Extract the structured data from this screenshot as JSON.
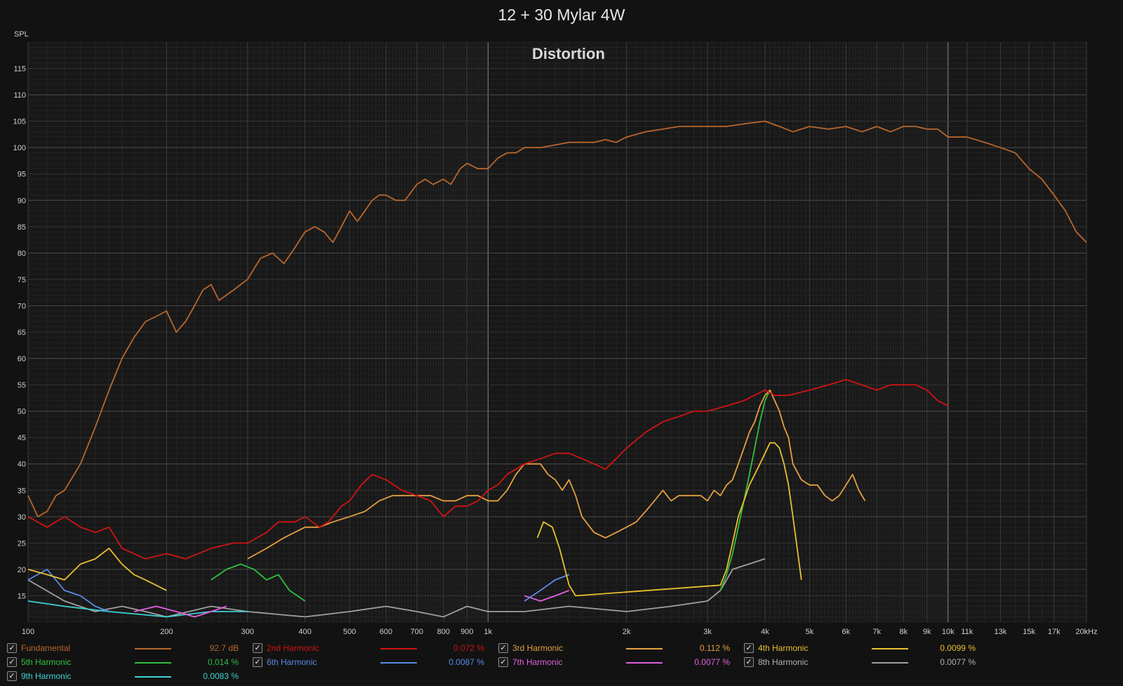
{
  "title": "12 + 30 Mylar 4W",
  "chart_data": {
    "type": "line",
    "title": "12 + 30 Mylar 4W",
    "subtitle": "Distortion",
    "ylabel": "SPL",
    "xlabel": "",
    "x_scale": "log",
    "xlim": [
      100,
      20000
    ],
    "ylim": [
      10,
      120
    ],
    "grid": true,
    "y_ticks": [
      15,
      20,
      25,
      30,
      35,
      40,
      45,
      50,
      55,
      60,
      65,
      70,
      75,
      80,
      85,
      90,
      95,
      100,
      105,
      110,
      115
    ],
    "x_ticks": [
      {
        "v": 100,
        "label": "100"
      },
      {
        "v": 200,
        "label": "200"
      },
      {
        "v": 300,
        "label": "300"
      },
      {
        "v": 400,
        "label": "400"
      },
      {
        "v": 500,
        "label": "500"
      },
      {
        "v": 600,
        "label": "600"
      },
      {
        "v": 700,
        "label": "700"
      },
      {
        "v": 800,
        "label": "800"
      },
      {
        "v": 900,
        "label": "900"
      },
      {
        "v": 1000,
        "label": "1k"
      },
      {
        "v": 2000,
        "label": "2k"
      },
      {
        "v": 3000,
        "label": "3k"
      },
      {
        "v": 4000,
        "label": "4k"
      },
      {
        "v": 5000,
        "label": "5k"
      },
      {
        "v": 6000,
        "label": "6k"
      },
      {
        "v": 7000,
        "label": "7k"
      },
      {
        "v": 8000,
        "label": "8k"
      },
      {
        "v": 9000,
        "label": "9k"
      },
      {
        "v": 10000,
        "label": "10k"
      },
      {
        "v": 11000,
        "label": "11k"
      },
      {
        "v": 13000,
        "label": "13k"
      },
      {
        "v": 15000,
        "label": "15k"
      },
      {
        "v": 17000,
        "label": "17k"
      },
      {
        "v": 20000,
        "label": "20kHz"
      }
    ],
    "legend_position": "bottom",
    "series": [
      {
        "name": "Fundamental",
        "color": "#b8662e",
        "value": "92.7 dB",
        "x": [
          100,
          105,
          110,
          115,
          120,
          130,
          140,
          150,
          160,
          170,
          180,
          190,
          200,
          210,
          220,
          230,
          240,
          250,
          260,
          280,
          300,
          320,
          340,
          360,
          380,
          400,
          420,
          440,
          460,
          480,
          500,
          520,
          540,
          560,
          580,
          600,
          630,
          660,
          700,
          730,
          760,
          800,
          830,
          870,
          900,
          950,
          1000,
          1050,
          1100,
          1150,
          1200,
          1300,
          1400,
          1500,
          1600,
          1700,
          1800,
          1900,
          2000,
          2200,
          2400,
          2600,
          2800,
          3000,
          3300,
          3600,
          4000,
          4300,
          4600,
          5000,
          5500,
          6000,
          6500,
          7000,
          7500,
          8000,
          8500,
          9000,
          9500,
          10000,
          10500,
          11000,
          12000,
          13000,
          14000,
          15000,
          16000,
          17000,
          18000,
          19000,
          20000
        ],
        "y": [
          34,
          30,
          31,
          34,
          35,
          40,
          47,
          54,
          60,
          64,
          67,
          68,
          69,
          65,
          67,
          70,
          73,
          74,
          71,
          73,
          75,
          79,
          80,
          78,
          81,
          84,
          85,
          84,
          82,
          85,
          88,
          86,
          88,
          90,
          91,
          91,
          90,
          90,
          93,
          94,
          93,
          94,
          93,
          96,
          97,
          96,
          96,
          98,
          99,
          99,
          100,
          100,
          100.5,
          101,
          101,
          101,
          101.5,
          101,
          102,
          103,
          103.5,
          104,
          104,
          104,
          104,
          104.5,
          105,
          104,
          103,
          104,
          103.5,
          104,
          103,
          104,
          103,
          104,
          104,
          103.5,
          103.5,
          102,
          102,
          102,
          101,
          100,
          99,
          96,
          94,
          91,
          88,
          84,
          82
        ]
      },
      {
        "name": "2nd Harmonic",
        "color": "#d01414",
        "value": "0.072 %",
        "x": [
          100,
          110,
          120,
          130,
          140,
          150,
          160,
          180,
          200,
          220,
          250,
          280,
          300,
          330,
          350,
          380,
          400,
          430,
          450,
          480,
          500,
          530,
          560,
          600,
          650,
          700,
          750,
          800,
          850,
          900,
          950,
          1000,
          1050,
          1100,
          1200,
          1300,
          1400,
          1500,
          1600,
          1700,
          1800,
          1900,
          2000,
          2200,
          2400,
          2600,
          2800,
          3000,
          3300,
          3600,
          4000,
          4200,
          4500,
          5000,
          5500,
          6000,
          6500,
          7000,
          7500,
          8000,
          8500,
          9000,
          9500,
          10000
        ],
        "y": [
          30,
          28,
          30,
          28,
          27,
          28,
          24,
          22,
          23,
          22,
          24,
          25,
          25,
          27,
          29,
          29,
          30,
          28,
          29,
          32,
          33,
          36,
          38,
          37,
          35,
          34,
          33,
          30,
          32,
          32,
          33,
          35,
          36,
          38,
          40,
          41,
          42,
          42,
          41,
          40,
          39,
          41,
          43,
          46,
          48,
          49,
          50,
          50,
          51,
          52,
          54,
          53,
          53,
          54,
          55,
          56,
          55,
          54,
          55,
          55,
          55,
          54,
          52,
          51
        ]
      },
      {
        "name": "3rd Harmonic",
        "color": "#e6a040",
        "value": "0.112 %",
        "x": [
          300,
          330,
          360,
          400,
          430,
          460,
          500,
          540,
          580,
          620,
          660,
          700,
          750,
          800,
          850,
          900,
          950,
          1000,
          1050,
          1100,
          1150,
          1200,
          1300,
          1350,
          1400,
          1450,
          1500,
          1550,
          1600,
          1700,
          1800,
          1900,
          2000,
          2100,
          2200,
          2300,
          2400,
          2500,
          2600,
          2700,
          2800,
          2900,
          3000,
          3100,
          3200,
          3300,
          3400,
          3500,
          3600,
          3700,
          3800,
          3900,
          4000,
          4100,
          4200,
          4300,
          4400,
          4500,
          4600,
          4800,
          5000,
          5200,
          5400,
          5600,
          5800,
          6000,
          6200,
          6400,
          6600
        ],
        "y": [
          22,
          24,
          26,
          28,
          28,
          29,
          30,
          31,
          33,
          34,
          34,
          34,
          34,
          33,
          33,
          34,
          34,
          33,
          33,
          35,
          38,
          40,
          40,
          38,
          37,
          35,
          37,
          34,
          30,
          27,
          26,
          27,
          28,
          29,
          31,
          33,
          35,
          33,
          34,
          34,
          34,
          34,
          33,
          35,
          34,
          36,
          37,
          40,
          43,
          46,
          48,
          51,
          53,
          54,
          52,
          50,
          47,
          45,
          40,
          37,
          36,
          36,
          34,
          33,
          34,
          36,
          38,
          35,
          33
        ]
      },
      {
        "name": "4th Harmonic",
        "color": "#e8c030",
        "value": "0.0099 %",
        "x": [
          100,
          110,
          120,
          130,
          140,
          150,
          160,
          170,
          180,
          200,
          1280,
          1320,
          1380,
          1430,
          1480,
          1500,
          1550,
          3200,
          3300,
          3400,
          3500,
          3600,
          3700,
          3800,
          3900,
          4000,
          4100,
          4200,
          4300,
          4400,
          4500,
          4600,
          4700,
          4800
        ],
        "y": [
          20,
          19,
          18,
          21,
          22,
          24,
          21,
          19,
          18,
          16,
          26,
          29,
          28,
          24,
          19,
          17,
          15,
          17,
          20,
          25,
          30,
          33,
          36,
          38,
          40,
          42,
          44,
          44,
          43,
          40,
          36,
          30,
          24,
          18
        ]
      },
      {
        "name": "5th Harmonic",
        "color": "#30c040",
        "value": "0.014 %",
        "x": [
          250,
          270,
          290,
          310,
          330,
          350,
          370,
          400,
          3200,
          3300,
          3400,
          3500,
          3600,
          3700,
          3800,
          3900,
          4000,
          4100
        ],
        "y": [
          18,
          20,
          21,
          20,
          18,
          19,
          16,
          14,
          16,
          19,
          23,
          28,
          33,
          38,
          43,
          48,
          52,
          54
        ]
      },
      {
        "name": "6th Harmonic",
        "color": "#5a8ae8",
        "value": "0.0087 %",
        "x": [
          100,
          110,
          120,
          130,
          140,
          150,
          1200,
          1300,
          1400,
          1500
        ],
        "y": [
          18,
          20,
          16,
          15,
          13,
          12,
          14,
          16,
          18,
          19
        ]
      },
      {
        "name": "7th Harmonic",
        "color": "#e060e0",
        "value": "0.0077 %",
        "x": [
          170,
          190,
          210,
          230,
          250,
          270,
          1200,
          1300,
          1400,
          1500
        ],
        "y": [
          12,
          13,
          12,
          11,
          12,
          13,
          15,
          14,
          15,
          16
        ]
      },
      {
        "name": "8th Harmonic",
        "color": "#a0a0a0",
        "value": "0.0077 %",
        "x": [
          100,
          120,
          140,
          160,
          180,
          200,
          250,
          300,
          400,
          500,
          600,
          700,
          800,
          900,
          1000,
          1200,
          1500,
          2000,
          2500,
          3000,
          3200,
          3300,
          3400,
          4000
        ],
        "y": [
          18,
          14,
          12,
          13,
          12,
          11,
          13,
          12,
          11,
          12,
          13,
          12,
          11,
          13,
          12,
          12,
          13,
          12,
          13,
          14,
          16,
          18,
          20,
          22
        ]
      },
      {
        "name": "9th Harmonic",
        "color": "#40d0d0",
        "value": "0.0083 %",
        "x": [
          100,
          120,
          150,
          200,
          250,
          300
        ],
        "y": [
          14,
          13,
          12,
          11,
          12,
          12
        ]
      }
    ]
  },
  "legend": [
    {
      "name": "Fundamental",
      "value": "92.7 dB",
      "color": "#b8662e",
      "name_color": "#b8662e"
    },
    {
      "name": "2nd Harmonic",
      "value": "0.072 %",
      "color": "#d01414",
      "name_color": "#d01414"
    },
    {
      "name": "3rd Harmonic",
      "value": "0.112 %",
      "color": "#e6a040",
      "name_color": "#e6a040"
    },
    {
      "name": "4th Harmonic",
      "value": "0.0099 %",
      "color": "#e8c030",
      "name_color": "#e8c030"
    },
    {
      "name": "5th Harmonic",
      "value": "0.014 %",
      "color": "#30c040",
      "name_color": "#30c040"
    },
    {
      "name": "6th Harmonic",
      "value": "0.0087 %",
      "color": "#5a8ae8",
      "name_color": "#5a8ae8"
    },
    {
      "name": "7th Harmonic",
      "value": "0.0077 %",
      "color": "#e060e0",
      "name_color": "#e060e0"
    },
    {
      "name": "8th Harmonic",
      "value": "0.0077 %",
      "color": "#a0a0a0",
      "name_color": "#b0b0b0"
    },
    {
      "name": "9th Harmonic",
      "value": "0.0083 %",
      "color": "#40d0d0",
      "name_color": "#40d0d0"
    }
  ],
  "check_mark": "✓"
}
